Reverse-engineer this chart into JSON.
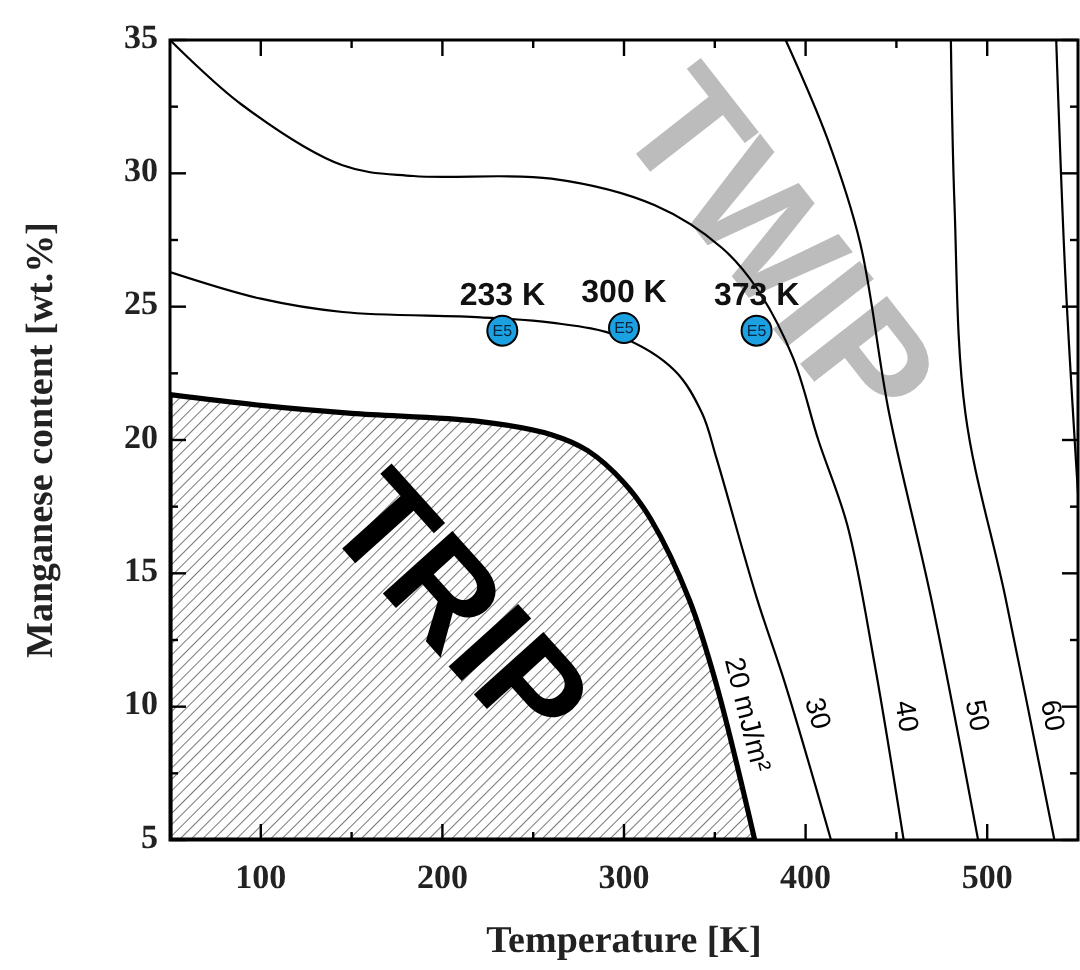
{
  "chart_data": {
    "type": "line",
    "xlabel": "Temperature [K]",
    "ylabel": "Manganese content [wt.%]",
    "xlim": [
      50,
      550
    ],
    "ylim": [
      5,
      35
    ],
    "xticks": [
      100,
      {
        "value": 150,
        "label": null
      },
      200,
      {
        "value": 250,
        "label": null
      },
      300,
      {
        "value": 350,
        "label": null
      },
      400,
      {
        "value": 450,
        "label": null
      },
      500
    ],
    "yticks": [
      5,
      {
        "value": 7.5,
        "label": null
      },
      10,
      {
        "value": 12.5,
        "label": null
      },
      15,
      {
        "value": 17.5,
        "label": null
      },
      20,
      {
        "value": 22.5,
        "label": null
      },
      25,
      {
        "value": 27.5,
        "label": null
      },
      30,
      {
        "value": 32.5,
        "label": null
      },
      35
    ],
    "grid": false,
    "series": [
      {
        "type": "area",
        "name": "20 mJ/m²",
        "color": "#000000",
        "x": [
          50,
          100,
          150,
          220,
          260,
          280,
          300,
          315,
          336,
          351,
          372
        ],
        "values": [
          21.7,
          21.3,
          21.0,
          20.7,
          20.2,
          19.6,
          18.4,
          17,
          14,
          10.8,
          5
        ]
      },
      {
        "name": "30",
        "color": "#000000",
        "x": [
          50,
          100,
          145,
          221,
          260,
          297,
          328,
          343,
          351,
          373,
          389,
          414
        ],
        "values": [
          26.3,
          25.3,
          24.8,
          24.6,
          24.4,
          23.9,
          22.6,
          21,
          19.3,
          14.1,
          10.8,
          5
        ]
      },
      {
        "name": "40",
        "color": "#000000",
        "x": [
          50,
          89,
          145,
          184,
          260,
          317,
          354,
          373,
          393,
          407,
          423,
          438,
          454
        ],
        "values": [
          35,
          32.6,
          30.3,
          29.9,
          29.8,
          28.8,
          27.2,
          25.7,
          23.1,
          20,
          16.8,
          11.6,
          5
        ]
      },
      {
        "name": "50",
        "color": "#000000",
        "x": [
          389,
          412,
          430,
          446,
          469,
          495
        ],
        "values": [
          35,
          31.3,
          27.4,
          21,
          14.1,
          5
        ]
      },
      {
        "name": "60",
        "color": "#000000",
        "x": [
          480,
          482,
          488,
          510,
          537
        ],
        "values": [
          35,
          28.8,
          21,
          14.1,
          5
        ]
      },
      {
        "color": "#000000",
        "x": [
          538,
          543,
          550
        ],
        "values": [
          35,
          26.2,
          18
        ]
      },
      {
        "type": "scatter",
        "color": "#1ba1e2",
        "marker": "circle",
        "x": [
          233,
          300,
          373
        ],
        "values": [
          24.1,
          24.2,
          24.1
        ],
        "value_labels": [
          "E5",
          "E5",
          "E5"
        ]
      }
    ],
    "annotations": [
      "TRIP",
      "TWIP",
      {
        "text": "233 K",
        "x": 233,
        "y": 24.1
      },
      {
        "text": "300 K",
        "x": 300,
        "y": 24.2
      },
      {
        "text": "373 K",
        "x": 373,
        "y": 24.1
      }
    ]
  }
}
